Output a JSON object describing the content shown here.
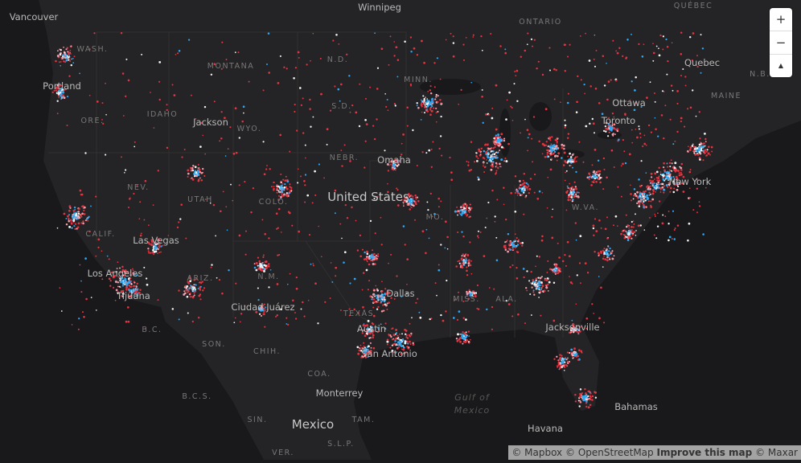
{
  "map": {
    "labels": {
      "vancouver": "Vancouver",
      "winnipeg": "Winnipeg",
      "ontario": "ONTARIO",
      "quebec_prov": "QUÉBEC",
      "wash": "WASH.",
      "nd": "N.D.",
      "montana": "MONTANA",
      "portland": "Portland",
      "quebec": "Quebec",
      "nb": "N.B.",
      "maine": "MAINE",
      "ottawa": "Ottawa",
      "idaho": "IDAHO",
      "sd": "S.D.",
      "minn": "MINN.",
      "ore": "ORE.",
      "jackson": "Jackson",
      "wyo": "WYO.",
      "toronto": "Toronto",
      "nebr": "NEBR.",
      "omaha": "Omaha",
      "nev": "NEV.",
      "utah": "UTAH",
      "colo": "COLO.",
      "newyork": "New York",
      "wva": "W.VA.",
      "mo": "MO.",
      "calif": "CALIF.",
      "lasvegas": "Las Vegas",
      "nm": "N.M.",
      "ariz": "ARIZ.",
      "losangeles": "Los Angeles",
      "tijuana": "Tijuana",
      "dallas": "Dallas",
      "miss": "MISS.",
      "ala": "ALA.",
      "texas": "TEXAS",
      "juarez": "Ciudad Juárez",
      "bc": "B.C.",
      "jacksonville": "Jacksonville",
      "austin": "Austin",
      "son": "SON.",
      "sanantonio": "San Antonio",
      "chih": "CHIH.",
      "coa": "COA.",
      "bcs": "B.C.S.",
      "monterrey": "Monterrey",
      "bahamas": "Bahamas",
      "sin": "SIN.",
      "tam": "TAM.",
      "havana": "Havana",
      "slp": "S.L.P.",
      "ver": "VER."
    },
    "country_labels": {
      "us": "United States",
      "mexico": "Mexico"
    },
    "water_label": [
      "Gulf of",
      "Mexico"
    ]
  },
  "controls": {
    "zoom_in": "+",
    "zoom_out": "−",
    "compass": "▲"
  },
  "attribution": {
    "mapbox": "© Mapbox",
    "osm": "© OpenStreetMap",
    "improve": "Improve this map",
    "maxar": "© Maxar"
  }
}
